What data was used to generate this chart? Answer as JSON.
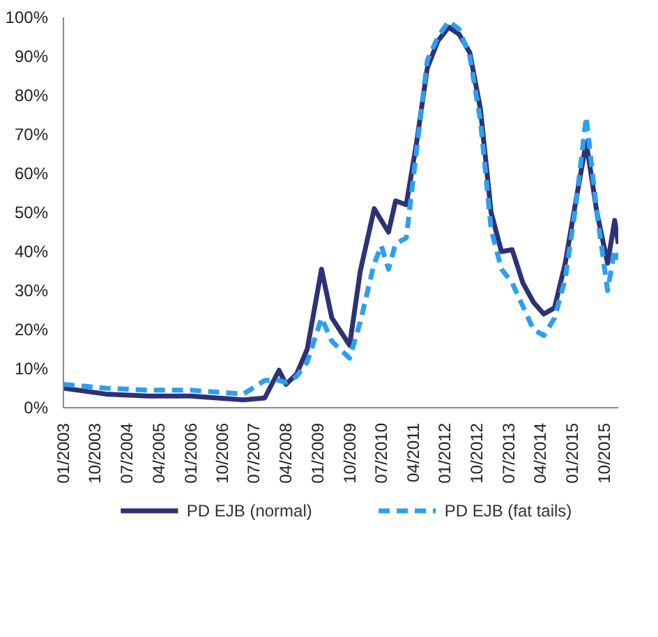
{
  "chart_data": {
    "type": "line",
    "x": [
      "2003-01",
      "2004-01",
      "2005-01",
      "2006-01",
      "2007-04",
      "2007-10",
      "2008-02",
      "2008-04",
      "2008-07",
      "2008-10",
      "2009-02",
      "2009-05",
      "2009-10",
      "2010-01",
      "2010-05",
      "2010-07",
      "2010-09",
      "2010-11",
      "2011-02",
      "2011-05",
      "2011-08",
      "2011-11",
      "2012-02",
      "2012-05",
      "2012-08",
      "2012-11",
      "2013-02",
      "2013-05",
      "2013-08",
      "2013-11",
      "2014-02",
      "2014-05",
      "2014-08",
      "2014-11",
      "2015-02",
      "2015-05",
      "2015-08",
      "2015-11",
      "2016-01",
      "2016-02"
    ],
    "series": [
      {
        "name": "PD EJB (normal)",
        "color": "#2e3275",
        "line_style": "solid",
        "values": [
          5,
          3.5,
          3,
          3,
          2,
          2.5,
          9.6,
          6,
          8.6,
          15,
          35.5,
          23,
          16,
          35,
          51,
          48,
          45,
          53,
          52,
          68,
          87,
          94,
          97.5,
          95.7,
          91,
          76.5,
          50,
          40,
          40.5,
          32,
          27,
          24,
          25.6,
          37,
          53,
          68,
          50,
          37,
          48,
          42
        ]
      },
      {
        "name": "PD EJB (fat tails)",
        "color": "#2e9ef0",
        "line_style": "dashed",
        "values": [
          6,
          5,
          4.5,
          4.5,
          3.5,
          7,
          7,
          6.5,
          8,
          11.7,
          23,
          17,
          12.7,
          22,
          37,
          41.5,
          35.5,
          42,
          43.5,
          66,
          89,
          95,
          99,
          97,
          90,
          73.5,
          45.7,
          35.5,
          32,
          26,
          20,
          18.5,
          23,
          33,
          52,
          74.5,
          50,
          30,
          40.5,
          38
        ]
      }
    ],
    "xlim": [
      "2003-01",
      "2016-02"
    ],
    "xticks": [
      {
        "value": "2003-01",
        "label": "01/2003"
      },
      {
        "value": "2003-10",
        "label": "10/2003"
      },
      {
        "value": "2004-07",
        "label": "07/2004"
      },
      {
        "value": "2005-04",
        "label": "04/2005"
      },
      {
        "value": "2006-01",
        "label": "01/2006"
      },
      {
        "value": "2006-10",
        "label": "10/2006"
      },
      {
        "value": "2007-07",
        "label": "07/2007"
      },
      {
        "value": "2008-04",
        "label": "04/2008"
      },
      {
        "value": "2009-01",
        "label": "01/2009"
      },
      {
        "value": "2009-10",
        "label": "10/2009"
      },
      {
        "value": "2010-07",
        "label": "07/2010"
      },
      {
        "value": "2011-04",
        "label": "04/2011"
      },
      {
        "value": "2012-01",
        "label": "01/2012"
      },
      {
        "value": "2012-10",
        "label": "10/2012"
      },
      {
        "value": "2013-07",
        "label": "07/2013"
      },
      {
        "value": "2014-04",
        "label": "04/2014"
      },
      {
        "value": "2015-01",
        "label": "01/2015"
      },
      {
        "value": "2015-10",
        "label": "10/2015"
      }
    ],
    "ylim": [
      0,
      100
    ],
    "yticks": [
      {
        "value": 0,
        "label": "0%"
      },
      {
        "value": 10,
        "label": "10%"
      },
      {
        "value": 20,
        "label": "20%"
      },
      {
        "value": 30,
        "label": "30%"
      },
      {
        "value": 40,
        "label": "40%"
      },
      {
        "value": 50,
        "label": "50%"
      },
      {
        "value": 60,
        "label": "60%"
      },
      {
        "value": 70,
        "label": "70%"
      },
      {
        "value": 80,
        "label": "80%"
      },
      {
        "value": 90,
        "label": "90%"
      },
      {
        "value": 100,
        "label": "100%"
      }
    ],
    "legend": "bottom",
    "grid": false,
    "marker": "none"
  }
}
